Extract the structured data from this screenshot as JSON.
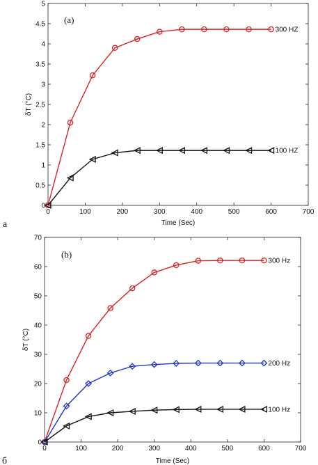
{
  "chart_data": [
    {
      "type": "line",
      "panel_label": "(a)",
      "subfigure_caption": "a",
      "xlabel": "Time (Sec)",
      "ylabel": "δT (°C)",
      "xlim": [
        0,
        700
      ],
      "ylim": [
        0,
        5
      ],
      "xticks": [
        0,
        100,
        200,
        300,
        400,
        500,
        600,
        700
      ],
      "yticks": [
        0,
        0.5,
        1,
        1.5,
        2,
        2.5,
        3,
        3.5,
        4,
        4.5,
        5
      ],
      "grid": false,
      "series": [
        {
          "name": "300 HZ",
          "color": "#dd2222",
          "marker": "circle",
          "x": [
            0,
            60,
            120,
            180,
            240,
            300,
            360,
            420,
            480,
            540,
            600
          ],
          "y": [
            0,
            2.05,
            3.22,
            3.9,
            4.12,
            4.3,
            4.36,
            4.36,
            4.36,
            4.36,
            4.36
          ]
        },
        {
          "name": "100 HZ",
          "color": "#111111",
          "marker": "triangle",
          "x": [
            0,
            60,
            120,
            180,
            240,
            300,
            360,
            420,
            480,
            540,
            600
          ],
          "y": [
            0,
            0.68,
            1.14,
            1.3,
            1.36,
            1.36,
            1.36,
            1.36,
            1.36,
            1.36,
            1.36
          ]
        }
      ]
    },
    {
      "type": "line",
      "panel_label": "(b)",
      "subfigure_caption": "б",
      "xlabel": "Time (Sec)",
      "ylabel": "δT (°C)",
      "xlim": [
        0,
        700
      ],
      "ylim": [
        0,
        70
      ],
      "xticks": [
        0,
        100,
        200,
        300,
        400,
        500,
        600,
        700
      ],
      "yticks": [
        0,
        10,
        20,
        30,
        40,
        50,
        60,
        70
      ],
      "grid": false,
      "series": [
        {
          "name": "300 Hz",
          "color": "#dd2222",
          "marker": "circle",
          "x": [
            0,
            60,
            120,
            180,
            240,
            300,
            360,
            420,
            480,
            540,
            600
          ],
          "y": [
            0,
            21.2,
            36.3,
            45.8,
            52.6,
            58,
            60.5,
            62,
            62.1,
            62.1,
            62.1
          ]
        },
        {
          "name": "200 Hz",
          "color": "#2233cc",
          "marker": "diamond",
          "x": [
            0,
            60,
            120,
            180,
            240,
            300,
            360,
            420,
            480,
            540,
            600
          ],
          "y": [
            0,
            12.3,
            20,
            23.6,
            25.9,
            26.5,
            26.9,
            27,
            27,
            27,
            27
          ]
        },
        {
          "name": "100 Hz",
          "color": "#111111",
          "marker": "triangle",
          "x": [
            0,
            60,
            120,
            180,
            240,
            300,
            360,
            420,
            480,
            540,
            600
          ],
          "y": [
            0,
            5.5,
            8.7,
            10,
            10.5,
            10.9,
            11.1,
            11.2,
            11.2,
            11.2,
            11.2
          ]
        }
      ]
    }
  ]
}
